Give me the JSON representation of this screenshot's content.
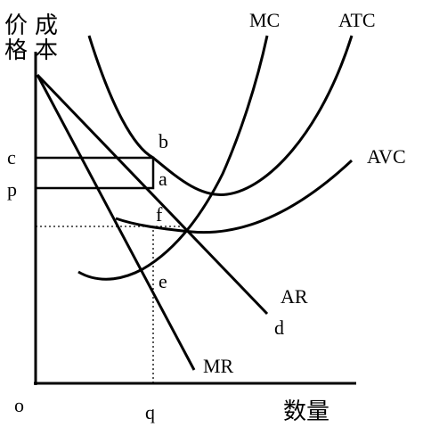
{
  "y_axis": {
    "label_1": "价格",
    "label_2": "成本"
  },
  "x_axis": {
    "label": "数量",
    "origin": "o",
    "q": "q"
  },
  "price_levels": {
    "c": "c",
    "p": "p"
  },
  "curves": {
    "mc": "MC",
    "atc": "ATC",
    "avc": "AVC",
    "ar": "AR",
    "d": "d",
    "mr": "MR"
  },
  "points": {
    "b": "b",
    "a": "a",
    "f": "f",
    "e": "e"
  }
}
